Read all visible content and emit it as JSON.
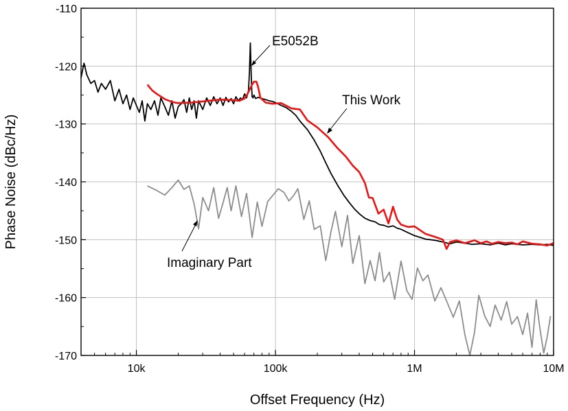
{
  "chart_data": {
    "type": "line",
    "xlabel": "Offset Frequency (Hz)",
    "ylabel": "Phase Noise (dBc/Hz)",
    "xscale": "log",
    "xlim": [
      4000,
      10000000
    ],
    "ylim": [
      -170,
      -110
    ],
    "grid": true,
    "x_ticks": [
      {
        "value": 10000,
        "label": "10k"
      },
      {
        "value": 100000,
        "label": "100k"
      },
      {
        "value": 1000000,
        "label": "1M"
      },
      {
        "value": 10000000,
        "label": "10M"
      }
    ],
    "y_ticks": [
      {
        "value": -110,
        "label": "-110"
      },
      {
        "value": -120,
        "label": "-120"
      },
      {
        "value": -130,
        "label": "-130"
      },
      {
        "value": -140,
        "label": "-140"
      },
      {
        "value": -150,
        "label": "-150"
      },
      {
        "value": -160,
        "label": "-160"
      },
      {
        "value": -170,
        "label": "-170"
      }
    ],
    "colors": {
      "e5052b": "#000000",
      "this_work": "#ee1111",
      "imaginary": "#8c8c8c",
      "grid": "#c0c0c0"
    },
    "series": [
      {
        "key": "e5052b",
        "color": "#000000",
        "x": [
          4000,
          4200,
          4400,
          4700,
          5000,
          5300,
          5600,
          6000,
          6500,
          7000,
          7500,
          8000,
          8500,
          9000,
          9500,
          10000,
          10500,
          11000,
          11500,
          12000,
          12700,
          13500,
          14300,
          15000,
          16000,
          17000,
          18000,
          19000,
          20000,
          21000,
          22000,
          23000,
          24000,
          25000,
          26000,
          27000,
          28000,
          30000,
          32000,
          34000,
          36000,
          38000,
          40000,
          42000,
          44000,
          46000,
          48000,
          50000,
          52000,
          54000,
          56000,
          58000,
          60000,
          62000,
          64000,
          65000,
          66000,
          66500,
          67000,
          67500,
          68000,
          69000,
          70000,
          72000,
          75000,
          80000,
          85000,
          90000,
          95000,
          100000,
          110000,
          120000,
          130000,
          140000,
          150000,
          170000,
          190000,
          210000,
          230000,
          250000,
          280000,
          310000,
          340000,
          370000,
          400000,
          440000,
          480000,
          520000,
          560000,
          600000,
          650000,
          700000,
          750000,
          800000,
          900000,
          1000000,
          1100000,
          1200000,
          1400000,
          1600000,
          1800000,
          2000000,
          2300000,
          2600000,
          3000000,
          3500000,
          4000000,
          4500000,
          5000000,
          6000000,
          7000000,
          8000000,
          9000000,
          10000000
        ],
        "y": [
          -122,
          -119.5,
          -121.5,
          -123,
          -122.5,
          -124.5,
          -123,
          -124,
          -122.5,
          -126,
          -124,
          -126.5,
          -125,
          -127.5,
          -125.5,
          -126.8,
          -128,
          -126,
          -129.5,
          -126.5,
          -127.5,
          -126,
          -128.5,
          -125.5,
          -127,
          -128.5,
          -126,
          -129,
          -127,
          -126.5,
          -125.8,
          -128,
          -125.5,
          -127.5,
          -126,
          -129,
          -126,
          -127.5,
          -125.5,
          -126.8,
          -125.3,
          -126.5,
          -125.5,
          -126.8,
          -125.4,
          -126.2,
          -125.6,
          -126.5,
          -125.3,
          -126,
          -125.5,
          -125.8,
          -124.8,
          -125.5,
          -124.2,
          -121,
          -116,
          -119,
          -121.5,
          -124,
          -125.3,
          -125.5,
          -125,
          -125.6,
          -125.4,
          -125.6,
          -125.8,
          -126,
          -126.1,
          -126.3,
          -126.8,
          -127.2,
          -127.8,
          -128.5,
          -129.5,
          -131,
          -132.8,
          -134.7,
          -136.7,
          -138.5,
          -140.6,
          -142.3,
          -143.6,
          -144.7,
          -145.5,
          -146.3,
          -146.7,
          -146.9,
          -147.4,
          -147.5,
          -147.8,
          -147.6,
          -148,
          -148.2,
          -148.8,
          -149.3,
          -149.6,
          -149.9,
          -150.1,
          -150.4,
          -150.7,
          -150.4,
          -150.6,
          -150.8,
          -150.7,
          -150.9,
          -150.6,
          -150.9,
          -150.7,
          -150.9,
          -150.8,
          -150.9,
          -150.8,
          -151
        ]
      },
      {
        "key": "this_work",
        "color": "#ee1111",
        "x": [
          12000,
          13000,
          14000,
          16000,
          18000,
          20000,
          25000,
          30000,
          40000,
          50000,
          55000,
          60000,
          63000,
          66000,
          68000,
          70000,
          73000,
          75000,
          78000,
          85000,
          95000,
          110000,
          130000,
          150000,
          170000,
          200000,
          240000,
          280000,
          320000,
          360000,
          400000,
          440000,
          470000,
          500000,
          550000,
          600000,
          650000,
          700000,
          750000,
          800000,
          900000,
          1000000,
          1200000,
          1400000,
          1600000,
          1700000,
          1800000,
          2000000,
          2300000,
          2700000,
          3000000,
          3300000,
          3600000,
          4000000,
          4500000,
          5000000,
          5500000,
          6000000,
          7000000,
          8000000,
          9000000,
          10000000
        ],
        "y": [
          -123.2,
          -124.2,
          -124.8,
          -125.7,
          -126.2,
          -126.4,
          -126.3,
          -126.1,
          -125.8,
          -125.9,
          -126,
          -125.6,
          -124.8,
          -123.8,
          -123.2,
          -122.7,
          -122.7,
          -123.6,
          -125.5,
          -126.3,
          -126.5,
          -126.4,
          -127.3,
          -127.5,
          -129.4,
          -130.6,
          -132.3,
          -134.2,
          -135.6,
          -137.2,
          -138.3,
          -140.2,
          -142.7,
          -142.8,
          -145.5,
          -144.8,
          -147.2,
          -144.3,
          -146.5,
          -147.4,
          -147.8,
          -147.7,
          -149,
          -149.5,
          -150,
          -151.6,
          -150.4,
          -150.1,
          -150.6,
          -150.1,
          -150.6,
          -150.3,
          -150.7,
          -150.4,
          -150.6,
          -150.5,
          -150.8,
          -150.3,
          -150.7,
          -150.8,
          -151,
          -150.6
        ]
      },
      {
        "key": "imaginary",
        "color": "#8c8c8c",
        "x": [
          12000,
          14000,
          16000,
          18000,
          20000,
          22000,
          24000,
          26000,
          28000,
          30000,
          33000,
          36000,
          39000,
          42000,
          45000,
          48000,
          52000,
          57000,
          62000,
          68000,
          74000,
          80000,
          88000,
          96000,
          105000,
          115000,
          125000,
          135000,
          145000,
          160000,
          175000,
          190000,
          210000,
          230000,
          250000,
          270000,
          300000,
          330000,
          360000,
          400000,
          440000,
          480000,
          520000,
          560000,
          600000,
          660000,
          720000,
          800000,
          880000,
          960000,
          1050000,
          1150000,
          1250000,
          1400000,
          1550000,
          1700000,
          1900000,
          2100000,
          2300000,
          2500000,
          2700000,
          2900000,
          3200000,
          3500000,
          3800000,
          4200000,
          4600000,
          5000000,
          5500000,
          6000000,
          6500000,
          7000000,
          7500000,
          8000000,
          8500000,
          9000000,
          9500000
        ],
        "y": [
          -140.7,
          -141.5,
          -142.3,
          -141,
          -139.7,
          -141.3,
          -140.7,
          -143.8,
          -148.1,
          -142.7,
          -145,
          -141,
          -146.3,
          -143.6,
          -141,
          -145,
          -140.7,
          -146,
          -142,
          -149.6,
          -143.5,
          -147.7,
          -143.4,
          -142.3,
          -141.2,
          -141.8,
          -143.3,
          -142.4,
          -141.2,
          -146.5,
          -143.3,
          -148.2,
          -147.6,
          -153.6,
          -148.8,
          -145.1,
          -151.2,
          -145.8,
          -154.1,
          -149.3,
          -157.6,
          -153.6,
          -157.1,
          -152.2,
          -157.3,
          -155.6,
          -160.3,
          -153.7,
          -158.8,
          -160.3,
          -154.9,
          -157.1,
          -156.1,
          -160.6,
          -158.3,
          -160.6,
          -163.4,
          -160.6,
          -166.4,
          -171,
          -166,
          -159.6,
          -163.2,
          -165,
          -161.3,
          -163.9,
          -160.7,
          -164.6,
          -163.3,
          -166.4,
          -162.7,
          -168.6,
          -160.4,
          -165.6,
          -169.6,
          -166.8,
          -163.2
        ]
      }
    ],
    "annotations": [
      {
        "text": "E5052B",
        "key": "e5052b"
      },
      {
        "text": "This Work",
        "key": "this_work"
      },
      {
        "text": "Imaginary Part",
        "key": "imaginary"
      }
    ]
  }
}
